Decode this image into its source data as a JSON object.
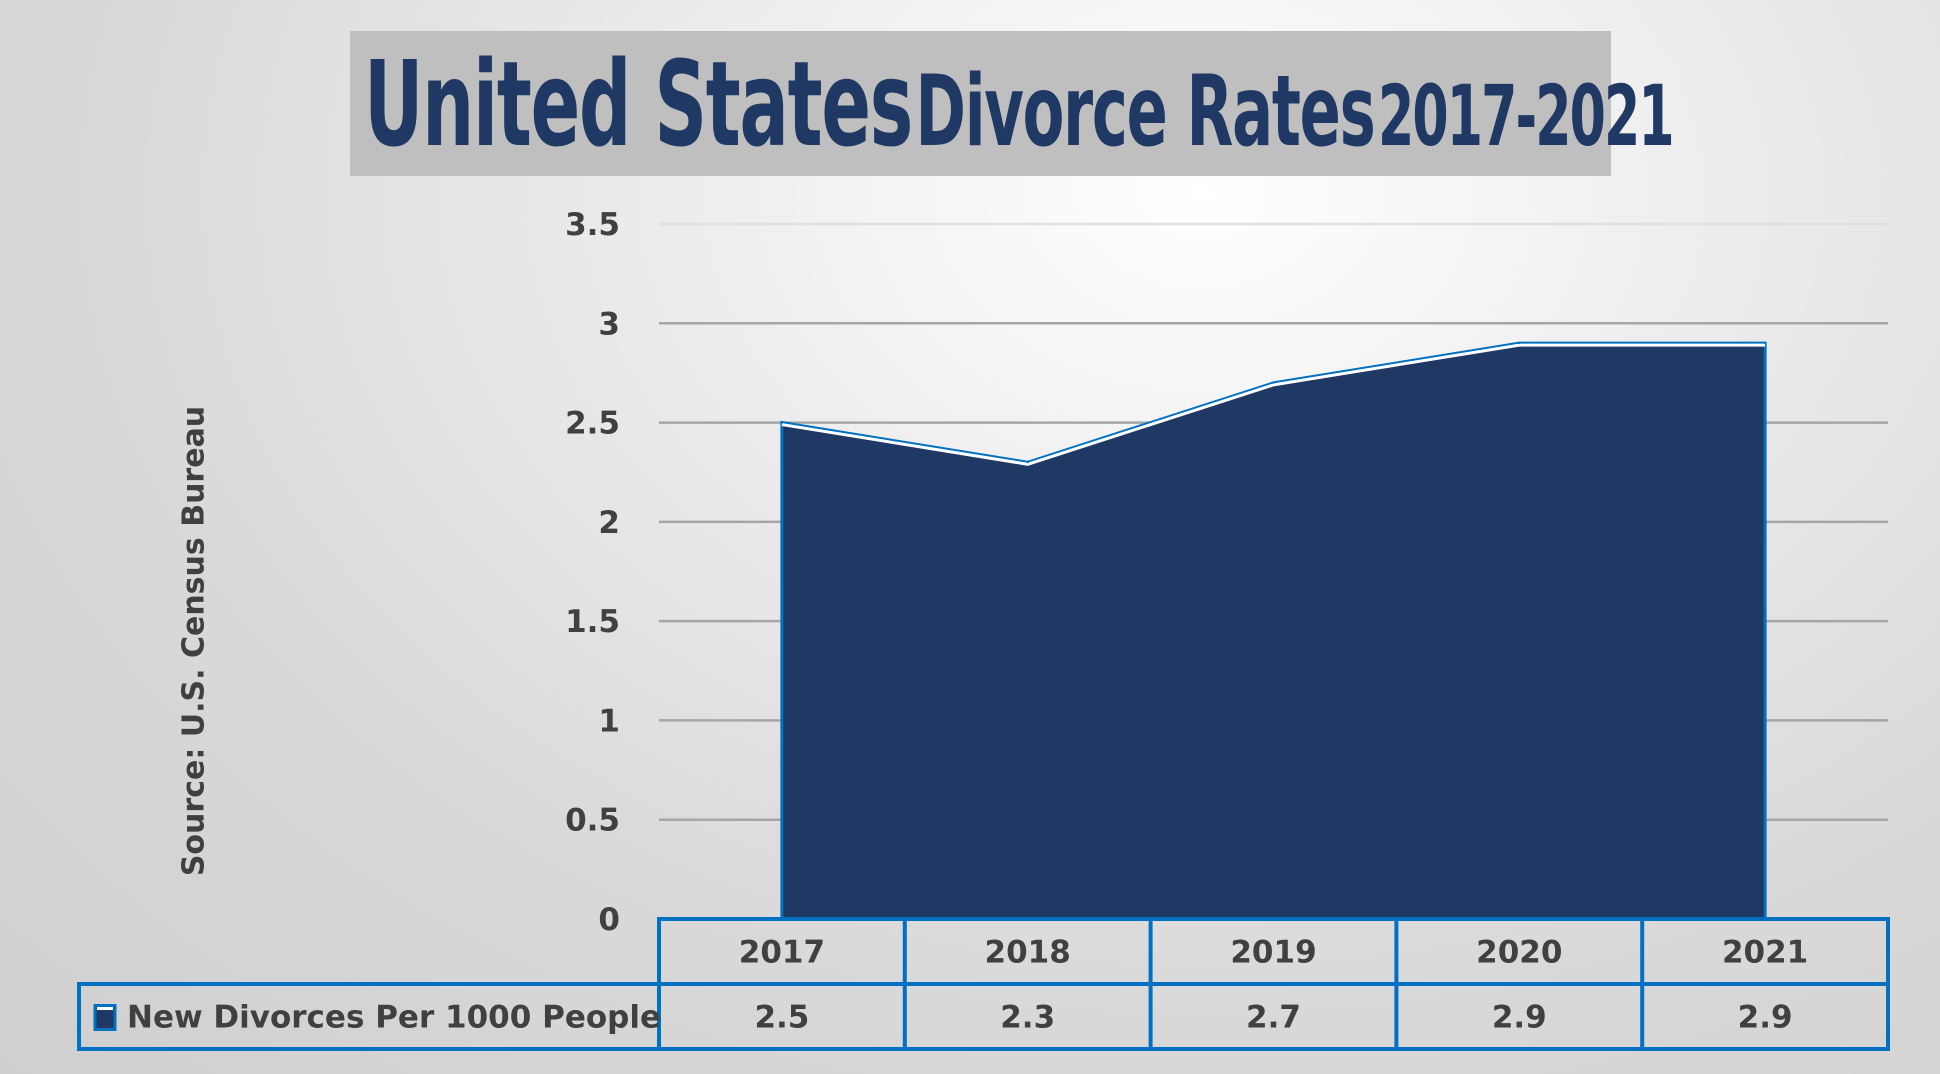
{
  "chart_data": {
    "type": "area",
    "title_parts": [
      "United States",
      "Divorce Rates",
      "2017-2021"
    ],
    "source": "Source: U.S. Census Bureau",
    "categories": [
      "2017",
      "2018",
      "2019",
      "2020",
      "2021"
    ],
    "series": [
      {
        "name": "New Divorces Per 1000 People",
        "values": [
          2.5,
          2.3,
          2.7,
          2.9,
          2.9
        ]
      }
    ],
    "value_labels": [
      "2.5",
      "2.3",
      "2.7",
      "2.9",
      "2.9"
    ],
    "ylim": [
      0,
      3.5
    ],
    "yticks": [
      "0",
      "0.5",
      "1",
      "1.5",
      "2",
      "2.5",
      "3",
      "3.5"
    ],
    "grid": true,
    "legend": "data-table",
    "colors": {
      "fill": "#1f3864",
      "outline": "#0070c0",
      "title": "#1f3864",
      "table_border": "#0070c0"
    }
  }
}
